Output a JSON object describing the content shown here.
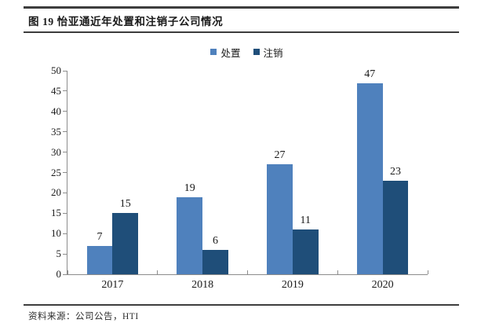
{
  "figure": {
    "title": "图 19 怡亚通近年处置和注销子公司情况",
    "source": "资料来源：公司公告，HTI"
  },
  "legend": [
    {
      "label": "处置",
      "color": "#4F81BD"
    },
    {
      "label": "注销",
      "color": "#1F4E79"
    }
  ],
  "chart_data": {
    "type": "bar",
    "title": "图 19 怡亚通近年处置和注销子公司情况",
    "categories": [
      "2017",
      "2018",
      "2019",
      "2020"
    ],
    "series": [
      {
        "name": "处置",
        "color": "#4F81BD",
        "values": [
          7,
          19,
          27,
          47
        ]
      },
      {
        "name": "注销",
        "color": "#1F4E79",
        "values": [
          15,
          6,
          11,
          23
        ]
      }
    ],
    "xlabel": "",
    "ylabel": "",
    "ylim": [
      0,
      50
    ],
    "ytick_step": 5,
    "grid": false,
    "legend_position": "top-center",
    "value_labels": true
  }
}
